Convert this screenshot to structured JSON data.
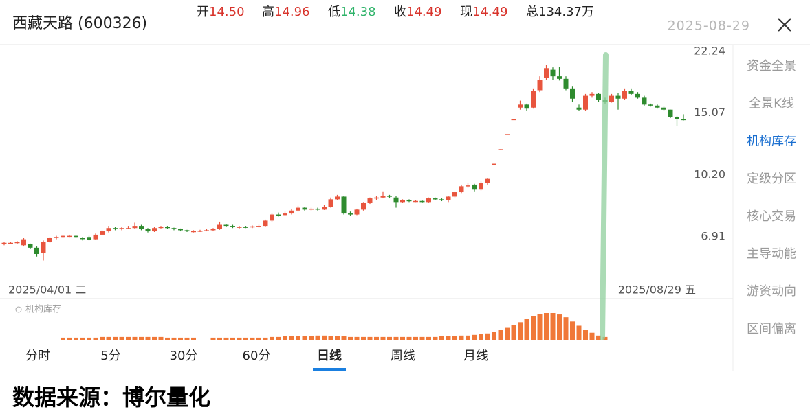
{
  "header": {
    "title": "西藏天路 (600326)",
    "quotes": [
      {
        "label": "开",
        "value": "14.50",
        "color": "#d8342c"
      },
      {
        "label": "高",
        "value": "14.96",
        "color": "#d8342c"
      },
      {
        "label": "低",
        "value": "14.38",
        "color": "#2fb36a"
      },
      {
        "label": "收",
        "value": "14.49",
        "color": "#d8342c"
      },
      {
        "label": "现",
        "value": "14.49",
        "color": "#d8342c"
      },
      {
        "label": "总",
        "value": "134.37万",
        "color": "#222222"
      }
    ],
    "date": "2025-08-29"
  },
  "chart_data": {
    "type": "candlestick",
    "log_scale": true,
    "ylim": [
      4.7,
      23.1
    ],
    "yticks": [
      22.24,
      15.07,
      {
        "value": 10.2,
        "label": "10.20"
      },
      6.91
    ],
    "x_labels": [
      "2025/04/01 二",
      "2025/08/29 五"
    ],
    "up_color": "#e8553e",
    "down_color": "#2e8b2e",
    "ohlc": [
      [
        6.6,
        6.7,
        6.55,
        6.65
      ],
      [
        6.65,
        6.7,
        6.6,
        6.65
      ],
      [
        6.65,
        6.72,
        6.6,
        6.68
      ],
      [
        6.55,
        6.85,
        6.5,
        6.8
      ],
      [
        6.6,
        6.62,
        6.4,
        6.45
      ],
      [
        6.45,
        6.5,
        6.1,
        6.2
      ],
      [
        6.25,
        6.75,
        5.95,
        6.7
      ],
      [
        6.7,
        6.9,
        6.65,
        6.85
      ],
      [
        6.85,
        6.95,
        6.8,
        6.9
      ],
      [
        6.9,
        6.98,
        6.85,
        6.95
      ],
      [
        6.95,
        7.0,
        6.9,
        6.95
      ],
      [
        6.95,
        6.98,
        6.85,
        6.9
      ],
      [
        6.85,
        6.9,
        6.75,
        6.82
      ],
      [
        6.9,
        6.95,
        6.75,
        6.78
      ],
      [
        6.8,
        7.05,
        6.78,
        7.0
      ],
      [
        7.0,
        7.2,
        6.98,
        7.15
      ],
      [
        7.15,
        7.4,
        7.1,
        7.3
      ],
      [
        7.3,
        7.35,
        7.2,
        7.25
      ],
      [
        7.25,
        7.35,
        7.2,
        7.3
      ],
      [
        7.3,
        7.4,
        7.25,
        7.3
      ],
      [
        7.3,
        7.55,
        7.25,
        7.4
      ],
      [
        7.4,
        7.45,
        7.2,
        7.25
      ],
      [
        7.25,
        7.3,
        7.1,
        7.15
      ],
      [
        7.15,
        7.35,
        7.12,
        7.3
      ],
      [
        7.35,
        7.4,
        7.28,
        7.35
      ],
      [
        7.35,
        7.4,
        7.25,
        7.3
      ],
      [
        7.3,
        7.32,
        7.2,
        7.25
      ],
      [
        7.25,
        7.28,
        7.15,
        7.2
      ],
      [
        7.2,
        7.22,
        7.12,
        7.15
      ],
      [
        7.15,
        7.2,
        7.1,
        7.16
      ],
      [
        7.16,
        7.22,
        7.12,
        7.18
      ],
      [
        7.18,
        7.25,
        7.15,
        7.2
      ],
      [
        7.2,
        7.3,
        7.15,
        7.25
      ],
      [
        7.25,
        7.6,
        7.22,
        7.45
      ],
      [
        7.45,
        7.5,
        7.35,
        7.4
      ],
      [
        7.4,
        7.45,
        7.3,
        7.35
      ],
      [
        7.32,
        7.4,
        7.28,
        7.36
      ],
      [
        7.36,
        7.4,
        7.3,
        7.34
      ],
      [
        7.34,
        7.42,
        7.3,
        7.38
      ],
      [
        7.38,
        7.45,
        7.32,
        7.4
      ],
      [
        7.4,
        7.7,
        7.38,
        7.65
      ],
      [
        7.65,
        8.0,
        7.6,
        7.95
      ],
      [
        7.95,
        8.05,
        7.85,
        7.92
      ],
      [
        7.92,
        8.1,
        7.9,
        8.0
      ],
      [
        8.0,
        8.25,
        7.95,
        8.15
      ],
      [
        8.15,
        8.4,
        8.1,
        8.3
      ],
      [
        8.3,
        8.35,
        8.15,
        8.2
      ],
      [
        8.2,
        8.3,
        8.15,
        8.25
      ],
      [
        8.25,
        8.3,
        8.15,
        8.2
      ],
      [
        8.2,
        8.45,
        8.18,
        8.35
      ],
      [
        8.35,
        8.85,
        8.3,
        8.75
      ],
      [
        8.75,
        9.0,
        8.7,
        8.9
      ],
      [
        8.9,
        8.95,
        7.95,
        8.0
      ],
      [
        8.0,
        8.1,
        7.9,
        7.95
      ],
      [
        7.95,
        8.25,
        7.92,
        8.2
      ],
      [
        8.2,
        8.6,
        8.15,
        8.55
      ],
      [
        8.55,
        8.85,
        8.5,
        8.8
      ],
      [
        8.8,
        8.95,
        8.7,
        8.85
      ],
      [
        8.85,
        9.2,
        8.8,
        8.95
      ],
      [
        8.95,
        9.0,
        8.8,
        8.9
      ],
      [
        8.85,
        8.95,
        8.3,
        8.6
      ],
      [
        8.6,
        8.75,
        8.55,
        8.7
      ],
      [
        8.7,
        8.75,
        8.6,
        8.65
      ],
      [
        8.65,
        8.7,
        8.6,
        8.66
      ],
      [
        8.66,
        8.7,
        8.55,
        8.6
      ],
      [
        8.6,
        8.85,
        8.58,
        8.8
      ],
      [
        8.8,
        8.85,
        8.7,
        8.75
      ],
      [
        8.75,
        8.8,
        8.65,
        8.7
      ],
      [
        8.7,
        8.95,
        8.6,
        8.9
      ],
      [
        8.9,
        9.2,
        8.85,
        9.15
      ],
      [
        9.15,
        9.6,
        9.1,
        9.5
      ],
      [
        9.5,
        9.7,
        9.4,
        9.55
      ],
      [
        9.6,
        9.65,
        9.2,
        9.3
      ],
      [
        9.3,
        9.8,
        9.25,
        9.7
      ],
      [
        9.7,
        10.0,
        9.6,
        9.95
      ],
      [
        10.9,
        10.95,
        10.9,
        10.95
      ],
      [
        11.95,
        12.0,
        11.95,
        12.0
      ],
      [
        13.2,
        13.2,
        13.2,
        13.2
      ],
      [
        14.5,
        14.5,
        14.5,
        14.5
      ],
      [
        15.6,
        16.3,
        15.4,
        15.9
      ],
      [
        15.9,
        16.0,
        15.3,
        15.5
      ],
      [
        15.6,
        17.6,
        15.5,
        17.3
      ],
      [
        17.4,
        19.0,
        17.2,
        18.6
      ],
      [
        18.8,
        20.4,
        18.6,
        20.0
      ],
      [
        19.8,
        20.1,
        18.6,
        19.0
      ],
      [
        19.0,
        20.2,
        18.5,
        18.7
      ],
      [
        18.7,
        19.0,
        17.4,
        17.6
      ],
      [
        17.6,
        17.8,
        16.2,
        16.5
      ],
      [
        15.6,
        15.9,
        15.3,
        15.4
      ],
      [
        15.4,
        17.0,
        15.3,
        16.8
      ],
      [
        16.8,
        17.2,
        16.6,
        17.0
      ],
      [
        17.0,
        17.1,
        16.2,
        16.4
      ],
      [
        16.4,
        16.6,
        16.0,
        16.2
      ],
      [
        16.2,
        17.0,
        16.1,
        16.8
      ],
      [
        16.8,
        17.1,
        15.4,
        16.5
      ],
      [
        16.5,
        17.6,
        16.4,
        17.3
      ],
      [
        17.3,
        17.6,
        16.9,
        17.0
      ],
      [
        17.0,
        17.2,
        16.5,
        16.6
      ],
      [
        16.6,
        16.8,
        15.8,
        15.9
      ],
      [
        15.9,
        16.0,
        15.7,
        15.8
      ],
      [
        15.8,
        15.9,
        15.5,
        15.6
      ],
      [
        15.6,
        15.7,
        15.3,
        15.4
      ],
      [
        15.4,
        15.4,
        14.6,
        14.7
      ],
      [
        14.7,
        14.8,
        13.9,
        14.5
      ],
      [
        14.5,
        14.96,
        14.38,
        14.49
      ]
    ]
  },
  "indicator": {
    "title": "机构库存",
    "color": "#f07838",
    "values": [
      null,
      null,
      null,
      null,
      null,
      null,
      null,
      null,
      null,
      3,
      3,
      3,
      3,
      3,
      3,
      4,
      4,
      4,
      4,
      4,
      4,
      4,
      4,
      4,
      4,
      3,
      3,
      3,
      3,
      3,
      null,
      null,
      3,
      3,
      3,
      3,
      3,
      3,
      3,
      3,
      3,
      4,
      4,
      5,
      5,
      5,
      5,
      5,
      6,
      6,
      5,
      5,
      5,
      4,
      4,
      4,
      4,
      4,
      4,
      4,
      4,
      4,
      4,
      4,
      4,
      4,
      4,
      5,
      5,
      5,
      6,
      6,
      7,
      8,
      9,
      11,
      14,
      17,
      21,
      25,
      30,
      34,
      37,
      38,
      38,
      36,
      32,
      26,
      20,
      14,
      10,
      6,
      4,
      null,
      null,
      null,
      null,
      null,
      null,
      null,
      null,
      null,
      null,
      null,
      null
    ]
  },
  "tabs": {
    "items": [
      "分时",
      "5分",
      "30分",
      "60分",
      "日线",
      "周线",
      "月线"
    ],
    "selected": 4
  },
  "side_menu": {
    "items": [
      "资金全景",
      "全景K线",
      "机构库存",
      "定级分区",
      "核心交易",
      "主导动能",
      "游资动向",
      "区间偏离"
    ],
    "selected": 2
  },
  "footer": "数据来源：博尔量化"
}
